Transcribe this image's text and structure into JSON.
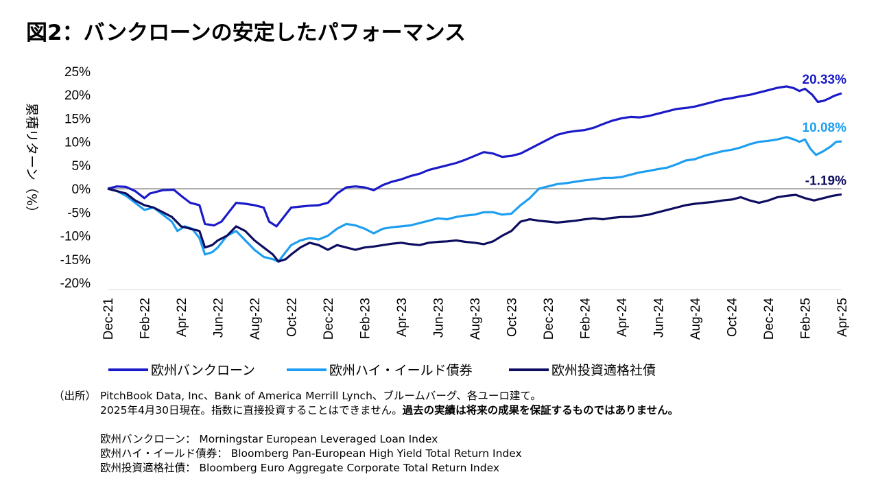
{
  "title": "図2：バンクローンの安定したパフォーマンス",
  "chart_data": {
    "type": "line",
    "ylabel": "累積リターン（%）",
    "ylim": [
      -20,
      25
    ],
    "y_ticks": [
      "25%",
      "20%",
      "15%",
      "10%",
      "5%",
      "0%",
      "-5%",
      "-10%",
      "-15%",
      "-20%"
    ],
    "x_ticks": [
      "Dec-21",
      "Feb-22",
      "Apr-22",
      "Jun-22",
      "Aug-22",
      "Oct-22",
      "Dec-22",
      "Feb-23",
      "Apr-23",
      "Jun-23",
      "Aug-23",
      "Oct-23",
      "Dec-23",
      "Feb-24",
      "Apr-24",
      "Jun-24",
      "Aug-24",
      "Oct-24",
      "Dec-24",
      "Feb-25",
      "Apr-25"
    ],
    "x_range_months": [
      0,
      40
    ],
    "series": [
      {
        "name": "欧州バンクローン",
        "color": "#1a1ac8",
        "end_label": "20.33%",
        "points": [
          [
            0,
            0
          ],
          [
            0.5,
            0.5
          ],
          [
            1,
            0.4
          ],
          [
            1.5,
            -0.5
          ],
          [
            2,
            -2
          ],
          [
            2.3,
            -1
          ],
          [
            3,
            -0.3
          ],
          [
            3.6,
            -0.2
          ],
          [
            4,
            -1.5
          ],
          [
            4.5,
            -3
          ],
          [
            5,
            -3.5
          ],
          [
            5.3,
            -7.5
          ],
          [
            5.8,
            -7.8
          ],
          [
            6.2,
            -7
          ],
          [
            6.6,
            -5
          ],
          [
            7,
            -3
          ],
          [
            7.5,
            -3.2
          ],
          [
            8,
            -3.5
          ],
          [
            8.5,
            -4
          ],
          [
            8.8,
            -7
          ],
          [
            9.2,
            -8
          ],
          [
            9.6,
            -6
          ],
          [
            10,
            -4
          ],
          [
            10.5,
            -3.8
          ],
          [
            11,
            -3.6
          ],
          [
            11.5,
            -3.5
          ],
          [
            12,
            -3
          ],
          [
            12.5,
            -1
          ],
          [
            13,
            0.3
          ],
          [
            13.5,
            0.5
          ],
          [
            14,
            0.3
          ],
          [
            14.5,
            -0.3
          ],
          [
            15,
            0.8
          ],
          [
            15.5,
            1.5
          ],
          [
            16,
            2
          ],
          [
            16.5,
            2.7
          ],
          [
            17,
            3.2
          ],
          [
            17.5,
            4
          ],
          [
            18,
            4.5
          ],
          [
            18.5,
            5
          ],
          [
            19,
            5.5
          ],
          [
            19.5,
            6.2
          ],
          [
            20,
            7
          ],
          [
            20.5,
            7.8
          ],
          [
            21,
            7.5
          ],
          [
            21.5,
            6.8
          ],
          [
            22,
            7
          ],
          [
            22.5,
            7.5
          ],
          [
            23,
            8.5
          ],
          [
            23.5,
            9.5
          ],
          [
            24,
            10.5
          ],
          [
            24.5,
            11.5
          ],
          [
            25,
            12
          ],
          [
            25.5,
            12.3
          ],
          [
            26,
            12.5
          ],
          [
            26.5,
            13
          ],
          [
            27,
            13.8
          ],
          [
            27.5,
            14.5
          ],
          [
            28,
            15
          ],
          [
            28.5,
            15.3
          ],
          [
            29,
            15.2
          ],
          [
            29.5,
            15.5
          ],
          [
            30,
            16
          ],
          [
            30.5,
            16.5
          ],
          [
            31,
            17
          ],
          [
            31.5,
            17.2
          ],
          [
            32,
            17.5
          ],
          [
            32.5,
            18
          ],
          [
            33,
            18.5
          ],
          [
            33.5,
            19
          ],
          [
            34,
            19.3
          ],
          [
            34.5,
            19.7
          ],
          [
            35,
            20
          ],
          [
            35.5,
            20.5
          ],
          [
            36,
            21
          ],
          [
            36.5,
            21.5
          ],
          [
            37,
            21.8
          ],
          [
            37.4,
            21.4
          ],
          [
            37.7,
            20.8
          ],
          [
            38,
            21.3
          ],
          [
            38.4,
            20
          ],
          [
            38.7,
            18.5
          ],
          [
            39,
            18.7
          ],
          [
            39.3,
            19.2
          ],
          [
            39.6,
            19.8
          ],
          [
            40,
            20.33
          ]
        ]
      },
      {
        "name": "欧州ハイ・イールド債券",
        "color": "#1e9ef0",
        "end_label": "10.08%",
        "points": [
          [
            0,
            0
          ],
          [
            0.5,
            -0.5
          ],
          [
            1,
            -1.5
          ],
          [
            1.5,
            -3
          ],
          [
            2,
            -4.5
          ],
          [
            2.5,
            -4
          ],
          [
            3,
            -5.5
          ],
          [
            3.5,
            -7
          ],
          [
            3.8,
            -9
          ],
          [
            4.2,
            -8
          ],
          [
            4.6,
            -8.5
          ],
          [
            5,
            -10.5
          ],
          [
            5.3,
            -14
          ],
          [
            5.7,
            -13.5
          ],
          [
            6,
            -12.5
          ],
          [
            6.5,
            -10
          ],
          [
            7,
            -9
          ],
          [
            7.5,
            -11
          ],
          [
            8,
            -13
          ],
          [
            8.5,
            -14.5
          ],
          [
            9,
            -15
          ],
          [
            9.3,
            -15.5
          ],
          [
            9.6,
            -14
          ],
          [
            10,
            -12
          ],
          [
            10.5,
            -11
          ],
          [
            11,
            -10.5
          ],
          [
            11.5,
            -10.8
          ],
          [
            12,
            -10
          ],
          [
            12.5,
            -8.5
          ],
          [
            13,
            -7.5
          ],
          [
            13.5,
            -7.8
          ],
          [
            14,
            -8.5
          ],
          [
            14.5,
            -9.5
          ],
          [
            15,
            -8.5
          ],
          [
            15.5,
            -8.2
          ],
          [
            16,
            -8
          ],
          [
            16.5,
            -7.8
          ],
          [
            17,
            -7.3
          ],
          [
            17.5,
            -6.8
          ],
          [
            18,
            -6.3
          ],
          [
            18.5,
            -6.5
          ],
          [
            19,
            -6
          ],
          [
            19.5,
            -5.7
          ],
          [
            20,
            -5.5
          ],
          [
            20.5,
            -5
          ],
          [
            21,
            -5
          ],
          [
            21.5,
            -5.5
          ],
          [
            22,
            -5.3
          ],
          [
            22.5,
            -3.5
          ],
          [
            23,
            -2
          ],
          [
            23.5,
            0
          ],
          [
            24,
            0.5
          ],
          [
            24.5,
            1
          ],
          [
            25,
            1.2
          ],
          [
            25.5,
            1.5
          ],
          [
            26,
            1.8
          ],
          [
            26.5,
            2
          ],
          [
            27,
            2.3
          ],
          [
            27.5,
            2.3
          ],
          [
            28,
            2.5
          ],
          [
            28.5,
            3
          ],
          [
            29,
            3.5
          ],
          [
            29.5,
            3.8
          ],
          [
            30,
            4.2
          ],
          [
            30.5,
            4.5
          ],
          [
            31,
            5.2
          ],
          [
            31.5,
            6
          ],
          [
            32,
            6.3
          ],
          [
            32.5,
            7
          ],
          [
            33,
            7.5
          ],
          [
            33.5,
            8
          ],
          [
            34,
            8.3
          ],
          [
            34.5,
            8.8
          ],
          [
            35,
            9.5
          ],
          [
            35.5,
            10
          ],
          [
            36,
            10.2
          ],
          [
            36.5,
            10.5
          ],
          [
            37,
            11
          ],
          [
            37.4,
            10.5
          ],
          [
            37.7,
            10
          ],
          [
            38,
            10.5
          ],
          [
            38.3,
            8.5
          ],
          [
            38.6,
            7.2
          ],
          [
            39,
            8
          ],
          [
            39.4,
            9
          ],
          [
            39.7,
            10
          ],
          [
            40,
            10.08
          ]
        ]
      },
      {
        "name": "欧州投資適格社債",
        "color": "#0d0d60",
        "end_label": "-1.19%",
        "points": [
          [
            0,
            0
          ],
          [
            0.5,
            -0.5
          ],
          [
            1,
            -1
          ],
          [
            1.5,
            -2.5
          ],
          [
            2,
            -3.5
          ],
          [
            2.5,
            -4
          ],
          [
            3,
            -5
          ],
          [
            3.5,
            -6
          ],
          [
            4,
            -8
          ],
          [
            4.5,
            -8.5
          ],
          [
            5,
            -9
          ],
          [
            5.3,
            -12.5
          ],
          [
            5.7,
            -12
          ],
          [
            6,
            -11
          ],
          [
            6.5,
            -10
          ],
          [
            7,
            -8
          ],
          [
            7.5,
            -9
          ],
          [
            8,
            -11
          ],
          [
            8.5,
            -12.5
          ],
          [
            9,
            -14
          ],
          [
            9.3,
            -15.5
          ],
          [
            9.7,
            -15
          ],
          [
            10,
            -14
          ],
          [
            10.5,
            -12.5
          ],
          [
            11,
            -11.5
          ],
          [
            11.5,
            -12
          ],
          [
            12,
            -13
          ],
          [
            12.5,
            -12
          ],
          [
            13,
            -12.5
          ],
          [
            13.5,
            -13
          ],
          [
            14,
            -12.5
          ],
          [
            14.5,
            -12.3
          ],
          [
            15,
            -12
          ],
          [
            15.5,
            -11.7
          ],
          [
            16,
            -11.5
          ],
          [
            16.5,
            -11.8
          ],
          [
            17,
            -12
          ],
          [
            17.5,
            -11.5
          ],
          [
            18,
            -11.3
          ],
          [
            18.5,
            -11.2
          ],
          [
            19,
            -11
          ],
          [
            19.5,
            -11.3
          ],
          [
            20,
            -11.5
          ],
          [
            20.5,
            -11.8
          ],
          [
            21,
            -11.2
          ],
          [
            21.5,
            -10
          ],
          [
            22,
            -9
          ],
          [
            22.5,
            -7
          ],
          [
            23,
            -6.5
          ],
          [
            23.5,
            -6.8
          ],
          [
            24,
            -7
          ],
          [
            24.5,
            -7.2
          ],
          [
            25,
            -7
          ],
          [
            25.5,
            -6.8
          ],
          [
            26,
            -6.5
          ],
          [
            26.5,
            -6.3
          ],
          [
            27,
            -6.5
          ],
          [
            27.5,
            -6.2
          ],
          [
            28,
            -6
          ],
          [
            28.5,
            -6
          ],
          [
            29,
            -5.8
          ],
          [
            29.5,
            -5.5
          ],
          [
            30,
            -5
          ],
          [
            30.5,
            -4.5
          ],
          [
            31,
            -4
          ],
          [
            31.5,
            -3.5
          ],
          [
            32,
            -3.2
          ],
          [
            32.5,
            -3
          ],
          [
            33,
            -2.8
          ],
          [
            33.5,
            -2.5
          ],
          [
            34,
            -2.3
          ],
          [
            34.5,
            -1.8
          ],
          [
            35,
            -2.5
          ],
          [
            35.5,
            -3
          ],
          [
            36,
            -2.5
          ],
          [
            36.5,
            -1.8
          ],
          [
            37,
            -1.5
          ],
          [
            37.5,
            -1.3
          ],
          [
            38,
            -2
          ],
          [
            38.5,
            -2.5
          ],
          [
            39,
            -2
          ],
          [
            39.5,
            -1.5
          ],
          [
            40,
            -1.19
          ]
        ]
      }
    ],
    "reference_line_y": 0
  },
  "notes": {
    "source_label": "（出所）",
    "source_line1": "PitchBook Data, Inc、Bank of America Merrill Lynch、ブルームバーグ、各ユーロ建て。",
    "source_line2_normal": "2025年4月30日現在。指数に直接投資することはできません。",
    "source_line2_bold": "過去の実績は将来の成果を保証するものではありません。",
    "index1": "欧州バンクローン： Morningstar European Leveraged Loan Index",
    "index2": "欧州ハイ・イールド債券： Bloomberg Pan-European High Yield Total Return Index",
    "index3": "欧州投資適格社債： Bloomberg Euro Aggregate Corporate Total Return Index"
  }
}
